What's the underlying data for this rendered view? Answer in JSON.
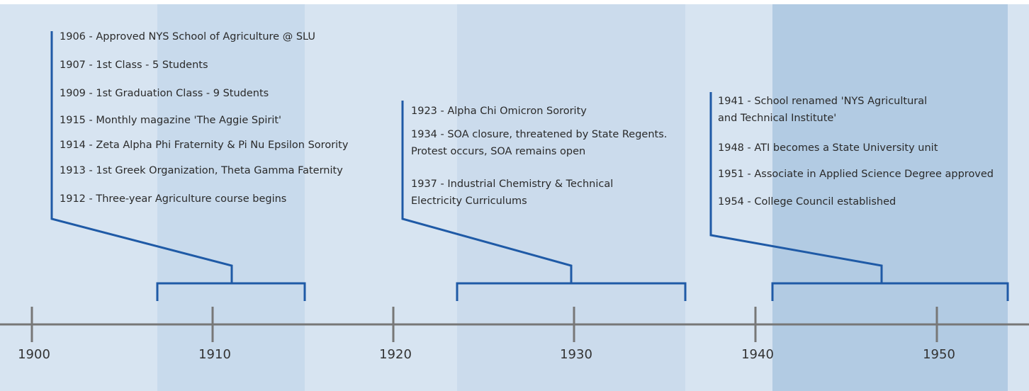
{
  "axis": {
    "labels": [
      "1900",
      "1910",
      "1920",
      "1930",
      "1940",
      "1950"
    ]
  },
  "groups": [
    {
      "events": [
        [
          "1906 - Approved NYS School of Agriculture @ SLU"
        ],
        [
          "1907 - 1st Class - 5 Students"
        ],
        [
          "1909 - 1st Graduation Class - 9 Students"
        ],
        [
          "1915 - Monthly magazine 'The Aggie Spirit'"
        ],
        [
          "1914 - Zeta Alpha Phi Fraternity & Pi Nu Epsilon Sorority"
        ],
        [
          "1913 - 1st Greek Organization, Theta Gamma Faternity"
        ],
        [
          "1912 - Three-year Agriculture course begins"
        ]
      ]
    },
    {
      "events": [
        [
          "1923 - Alpha Chi Omicron Sorority"
        ],
        [
          "1934 - SOA closure, threatened by State Regents.",
          "Protest occurs, SOA remains open"
        ],
        [
          "1937 - Industrial Chemistry & Technical",
          "Electricity Curriculums"
        ]
      ]
    },
    {
      "events": [
        [
          "1941 - School renamed 'NYS Agricultural",
          "and Technical Institute'"
        ],
        [
          "1948 - ATI becomes a State University unit"
        ],
        [
          "1951 - Associate in Applied Science Degree approved"
        ],
        [
          "1954 - College Council established"
        ]
      ]
    }
  ]
}
